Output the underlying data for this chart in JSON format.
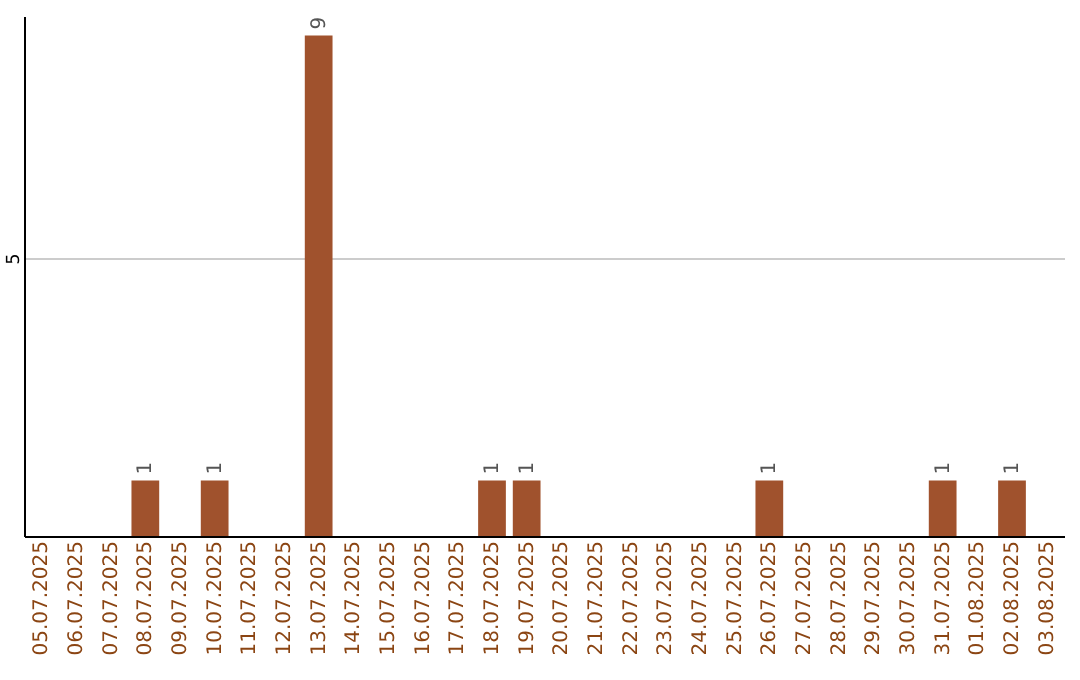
{
  "chart_data": {
    "type": "bar",
    "categories": [
      "05.07.2025",
      "06.07.2025",
      "07.07.2025",
      "08.07.2025",
      "09.07.2025",
      "10.07.2025",
      "11.07.2025",
      "12.07.2025",
      "13.07.2025",
      "14.07.2025",
      "15.07.2025",
      "16.07.2025",
      "17.07.2025",
      "18.07.2025",
      "19.07.2025",
      "20.07.2025",
      "21.07.2025",
      "22.07.2025",
      "23.07.2025",
      "24.07.2025",
      "25.07.2025",
      "26.07.2025",
      "27.07.2025",
      "28.07.2025",
      "29.07.2025",
      "30.07.2025",
      "31.07.2025",
      "01.08.2025",
      "02.08.2025",
      "03.08.2025"
    ],
    "values": [
      0,
      0,
      0,
      1,
      0,
      1,
      0,
      0,
      9,
      0,
      0,
      0,
      0,
      1,
      1,
      0,
      0,
      0,
      0,
      0,
      0,
      1,
      0,
      0,
      0,
      0,
      1,
      0,
      1,
      0
    ],
    "color": "#a0522d",
    "value_labels": [
      null,
      null,
      null,
      "1",
      null,
      "1",
      null,
      null,
      "9",
      null,
      null,
      null,
      null,
      "1",
      "1",
      null,
      null,
      null,
      null,
      null,
      null,
      "1",
      null,
      null,
      null,
      null,
      "1",
      null,
      "1",
      null
    ],
    "ylim": [
      0,
      9.35
    ],
    "yticks": [
      5
    ],
    "grid": "y"
  }
}
